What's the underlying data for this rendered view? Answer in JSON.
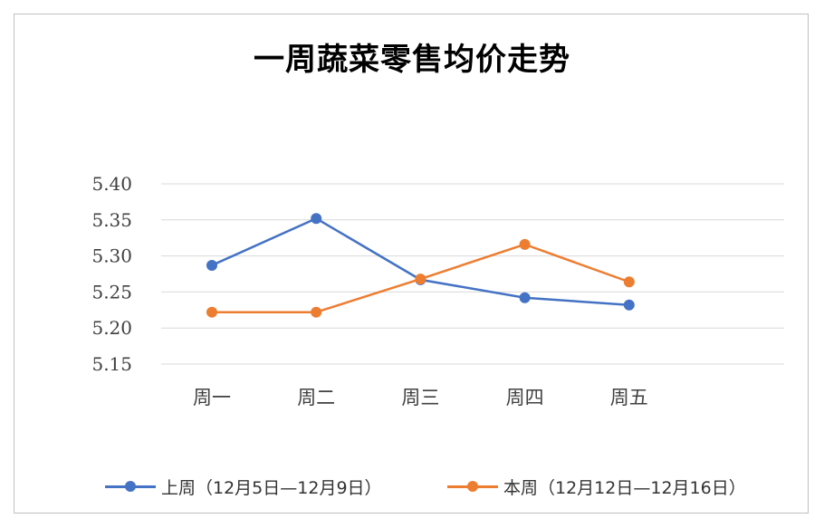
{
  "chart_data": {
    "type": "line",
    "title": "一周蔬菜零售均价走势",
    "categories": [
      "周一",
      "周二",
      "周三",
      "周四",
      "周五"
    ],
    "ylim": [
      5.15,
      5.4
    ],
    "yticks": [
      "5.40",
      "5.35",
      "5.30",
      "5.25",
      "5.20",
      "5.15"
    ],
    "grid": true,
    "legend_position": "bottom",
    "series": [
      {
        "name": "上周（12月5日—12月9日）",
        "color": "#4472C4",
        "values": [
          5.287,
          5.352,
          5.267,
          5.242,
          5.232
        ]
      },
      {
        "name": "本周（12月12日—12月16日）",
        "color": "#ED7D31",
        "values": [
          5.222,
          5.222,
          5.268,
          5.316,
          5.264
        ]
      }
    ]
  }
}
